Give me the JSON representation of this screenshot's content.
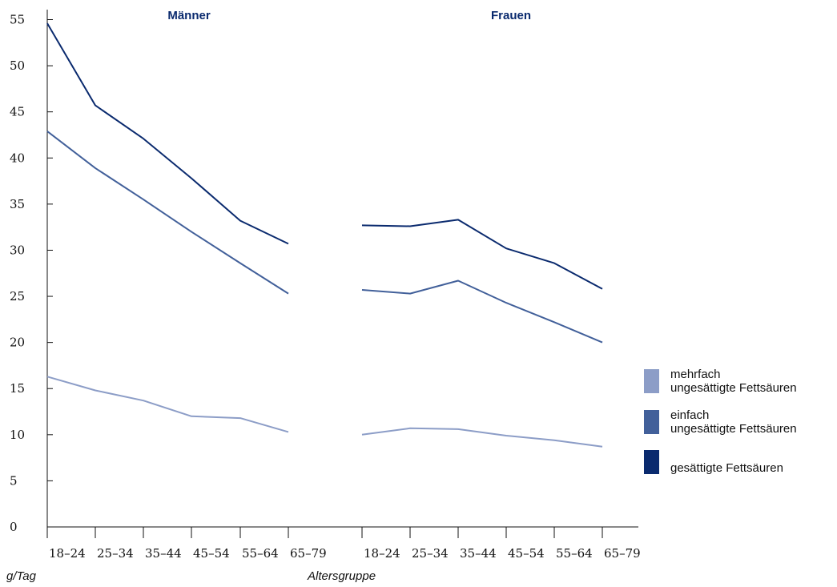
{
  "chart_data": {
    "type": "line",
    "ylabel": "g/Tag",
    "xlabel": "Altersgruppe",
    "ylim": [
      0,
      55
    ],
    "yticks": [
      "0",
      "5",
      "10",
      "15",
      "20",
      "25",
      "30",
      "35",
      "40",
      "45",
      "50",
      "55"
    ],
    "categories": [
      "18–24",
      "25–34",
      "35–44",
      "45–54",
      "55–64",
      "65–79"
    ],
    "colors": {
      "mehrfach": "#8c9dc7",
      "einfach": "#42609a",
      "gesaettigt": "#0a2a6e"
    },
    "legend": [
      {
        "key": "mehrfach",
        "lines": [
          "mehrfach",
          "ungesättigte Fettsäuren"
        ]
      },
      {
        "key": "einfach",
        "lines": [
          "einfach",
          "ungesättigte Fettsäuren"
        ]
      },
      {
        "key": "gesaettigt",
        "lines": [
          "gesättigte Fettsäuren"
        ]
      }
    ],
    "groups": [
      {
        "title": "Männer",
        "series": [
          {
            "key": "gesaettigt",
            "name": "gesättigte Fettsäuren",
            "values": [
              54.6,
              45.7,
              42.1,
              37.8,
              33.2,
              30.7
            ]
          },
          {
            "key": "einfach",
            "name": "einfach ungesättigte Fettsäuren",
            "values": [
              42.9,
              38.9,
              35.5,
              32.0,
              28.6,
              25.3
            ]
          },
          {
            "key": "mehrfach",
            "name": "mehrfach ungesättigte Fettsäuren",
            "values": [
              16.3,
              14.8,
              13.7,
              12.0,
              11.8,
              10.3
            ]
          }
        ]
      },
      {
        "title": "Frauen",
        "series": [
          {
            "key": "gesaettigt",
            "name": "gesättigte Fettsäuren",
            "values": [
              32.7,
              32.6,
              33.3,
              30.2,
              28.6,
              25.8
            ]
          },
          {
            "key": "einfach",
            "name": "einfach ungesättigte Fettsäuren",
            "values": [
              25.7,
              25.3,
              26.7,
              24.3,
              22.2,
              20.0
            ]
          },
          {
            "key": "mehrfach",
            "name": "mehrfach ungesättigte Fettsäuren",
            "values": [
              10.0,
              10.7,
              10.6,
              9.9,
              9.4,
              8.7
            ]
          }
        ]
      }
    ]
  }
}
